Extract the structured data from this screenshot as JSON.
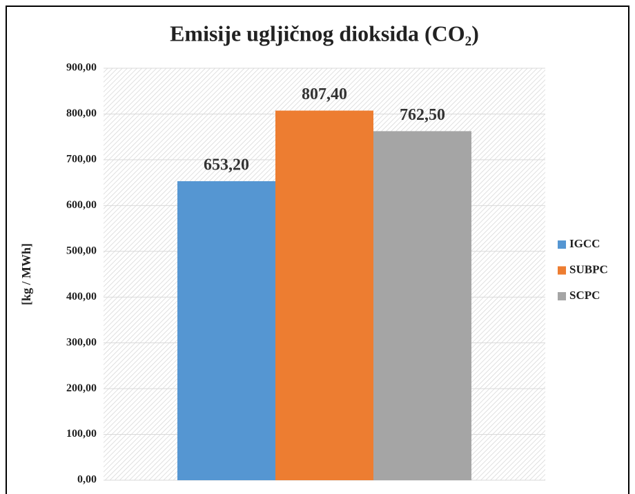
{
  "chart_data": {
    "type": "bar",
    "title": "Emisije ugljičnog dioksida (CO₂)",
    "y_label": "[kg / MWh]",
    "categories": [
      null
    ],
    "series": [
      {
        "name": "IGCC",
        "color": "#5596d2",
        "values": [
          653.2
        ],
        "value_labels": [
          "653,20"
        ]
      },
      {
        "name": "SUBPC",
        "color": "#ed7d31",
        "values": [
          807.4
        ],
        "value_labels": [
          "807,40"
        ]
      },
      {
        "name": "SCPC",
        "color": "#a5a5a5",
        "values": [
          762.5
        ],
        "value_labels": [
          "762,50"
        ]
      }
    ],
    "ylim": [
      0,
      900
    ],
    "yticks": [
      {
        "value": 0,
        "label": "0,00"
      },
      {
        "value": 100,
        "label": "100,00"
      },
      {
        "value": 200,
        "label": "200,00"
      },
      {
        "value": 300,
        "label": "300,00"
      },
      {
        "value": 400,
        "label": "400,00"
      },
      {
        "value": 500,
        "label": "500,00"
      },
      {
        "value": 600,
        "label": "600,00"
      },
      {
        "value": 700,
        "label": "700,00"
      },
      {
        "value": 800,
        "label": "800,00"
      },
      {
        "value": 900,
        "label": "900,00"
      }
    ],
    "grid": true,
    "legend": "right"
  }
}
